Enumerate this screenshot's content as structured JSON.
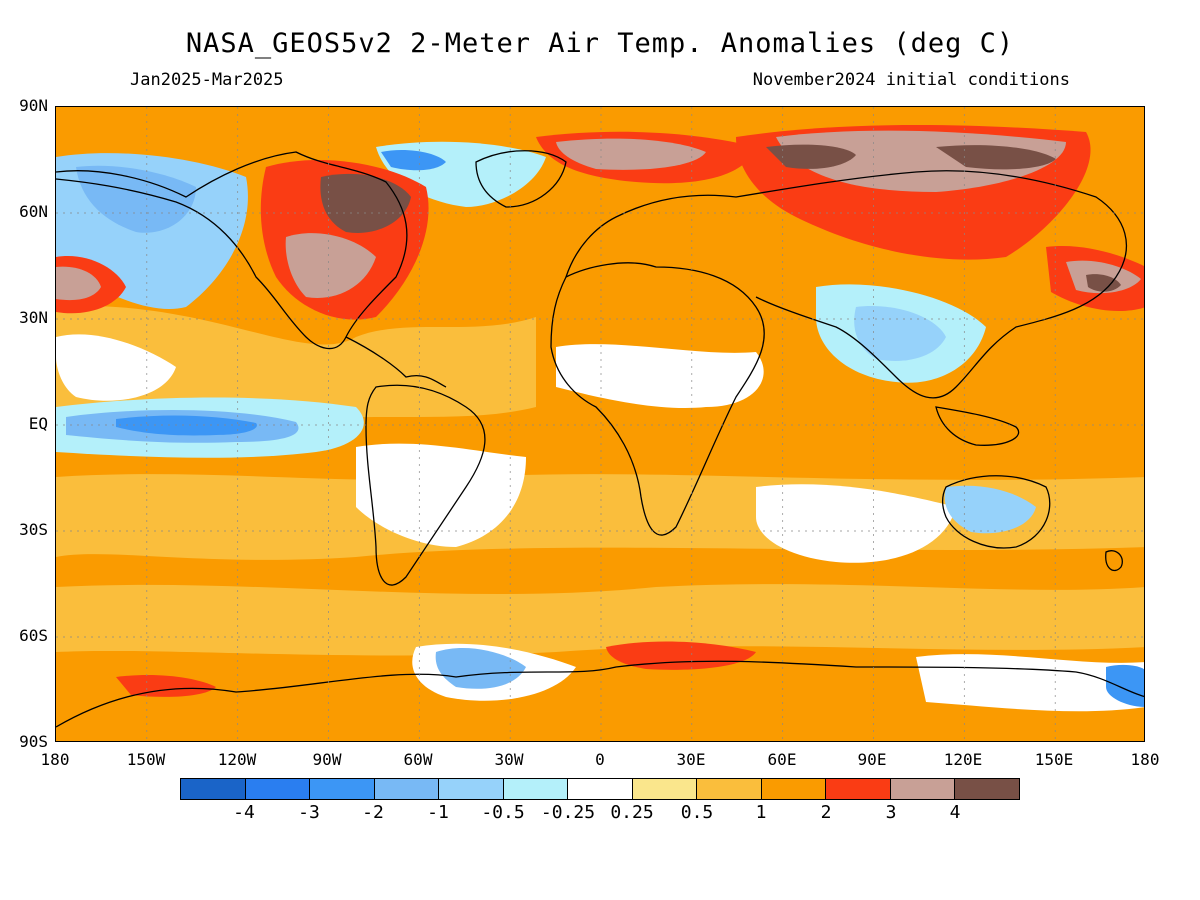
{
  "title": "NASA_GEOS5v2 2-Meter Air Temp. Anomalies (deg C)",
  "subtitle_left": "Jan2025-Mar2025",
  "subtitle_right": "November2024 initial conditions",
  "lat_labels": [
    "90N",
    "60N",
    "30N",
    "EQ",
    "30S",
    "60S",
    "90S"
  ],
  "lon_labels": [
    "180",
    "150W",
    "120W",
    "90W",
    "60W",
    "30W",
    "0",
    "30E",
    "60E",
    "90E",
    "120E",
    "150E",
    "180"
  ],
  "legend": {
    "colors": [
      "#1a64c8",
      "#2a7ef0",
      "#3c96f5",
      "#78b9f5",
      "#96d2fa",
      "#b4f0fa",
      "#ffffff",
      "#fae68c",
      "#fabe3c",
      "#fa9b00",
      "#fa3c14",
      "#c8a096",
      "#785046"
    ],
    "labels": [
      "-4",
      "-3",
      "-2",
      "-1",
      "-0.5",
      "-0.25",
      "0.25",
      "0.5",
      "1",
      "2",
      "3",
      "4"
    ]
  },
  "colors": {
    "background": "#fa9b00",
    "land_outline": "#000000"
  }
}
